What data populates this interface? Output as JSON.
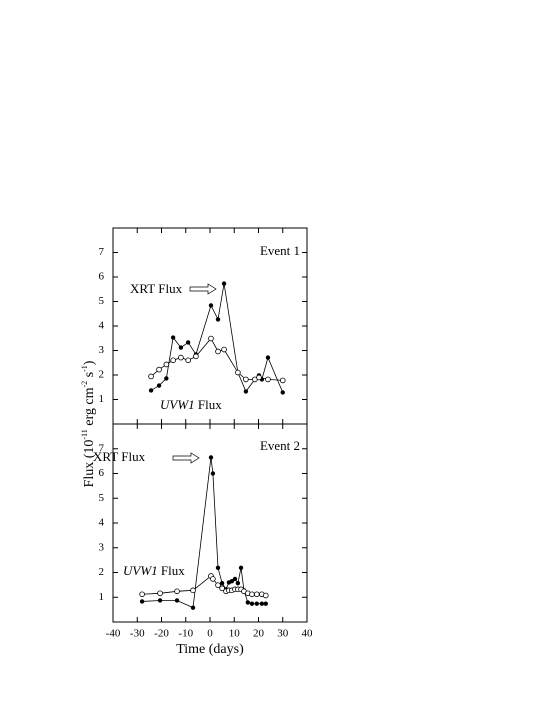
{
  "chart_data": [
    {
      "type": "line",
      "annotation": "Event 1",
      "xrt_label": "XRT Flux",
      "uvw1_label": {
        "italic": "UVW1",
        "text": "Flux"
      },
      "xlim": [
        -40,
        40
      ],
      "xticks": [
        -40,
        -30,
        -20,
        -10,
        0,
        10,
        20,
        30,
        40
      ],
      "ylim": [
        0,
        8
      ],
      "yticks": [
        1,
        2,
        3,
        4,
        5,
        6,
        7
      ],
      "series": [
        {
          "name": "XRT Flux",
          "color": "#000000",
          "marker": "filled",
          "x": [
            -24.3,
            -21,
            -18,
            -15.2,
            -12,
            -9,
            -5.8,
            0.4,
            3.3,
            5.8,
            11.5,
            14.8,
            18.5,
            20.2,
            21.4,
            23.9,
            30
          ],
          "values": [
            1.37,
            1.57,
            1.86,
            3.53,
            3.12,
            3.33,
            2.84,
            4.84,
            4.27,
            5.73,
            2.1,
            1.33,
            1.82,
            1.98,
            1.82,
            2.71,
            1.29
          ]
        },
        {
          "name": "UVW1 Flux",
          "color": "#000000",
          "marker": "open",
          "x": [
            -24.3,
            -21,
            -18,
            -15.2,
            -12,
            -9,
            -5.8,
            0.4,
            3.3,
            5.8,
            11.5,
            14.8,
            18.5,
            20.2,
            23.9,
            30
          ],
          "values": [
            1.94,
            2.22,
            2.43,
            2.6,
            2.71,
            2.6,
            2.76,
            3.49,
            2.96,
            3.04,
            2.1,
            1.82,
            1.82,
            1.9,
            1.82,
            1.78
          ]
        }
      ]
    },
    {
      "type": "line",
      "annotation": "Event 2",
      "xrt_label": "XRT Flux",
      "uvw1_label": {
        "italic": "UVW1",
        "text": "Flux"
      },
      "xlabel": "Time (days)",
      "ylabel": [
        "Flux (10",
        "-11",
        " erg cm",
        "-2",
        " s",
        "-1",
        ")"
      ],
      "xlim": [
        -40,
        40
      ],
      "xticks": [
        -40,
        -30,
        -20,
        -10,
        0,
        10,
        20,
        30,
        40
      ],
      "ylim": [
        0,
        8
      ],
      "yticks": [
        1,
        2,
        3,
        4,
        5,
        6,
        7
      ],
      "series": [
        {
          "name": "XRT Flux",
          "color": "#000000",
          "marker": "filled",
          "x": [
            -28,
            -20.6,
            -13.6,
            -7,
            0.4,
            1.2,
            3.3,
            5,
            6.6,
            7.8,
            9,
            10.3,
            11.5,
            12.8,
            14,
            15.6,
            17.3,
            19.3,
            21.4,
            23
          ],
          "values": [
            0.83,
            0.87,
            0.87,
            0.58,
            6.65,
            6.0,
            2.19,
            1.57,
            1.32,
            1.6,
            1.65,
            1.74,
            1.57,
            2.19,
            1.28,
            0.79,
            0.74,
            0.74,
            0.74,
            0.74
          ]
        },
        {
          "name": "UVW1 Flux",
          "color": "#000000",
          "marker": "open",
          "x": [
            -28,
            -20.6,
            -13.6,
            -7,
            0.4,
            1.2,
            3.3,
            5,
            6.6,
            7.8,
            9,
            10.3,
            11.5,
            12.8,
            14,
            15.6,
            17.3,
            19.3,
            21.4,
            23
          ],
          "values": [
            1.12,
            1.16,
            1.24,
            1.28,
            1.86,
            1.74,
            1.49,
            1.36,
            1.24,
            1.28,
            1.28,
            1.32,
            1.32,
            1.32,
            1.24,
            1.16,
            1.12,
            1.12,
            1.12,
            1.07
          ]
        }
      ]
    }
  ]
}
